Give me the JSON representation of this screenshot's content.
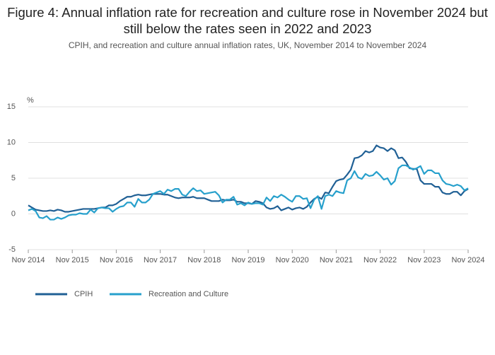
{
  "chart_data": {
    "type": "line",
    "title": "Figure 4: Annual inflation rate for recreation and culture rose in November 2024 but still below the rates seen in 2022 and 2023",
    "subtitle": "CPIH, and recreation and culture annual inflation rates, UK, November 2014 to November 2024",
    "y_label": "%",
    "categories": [
      "Nov 2014",
      null,
      null,
      null,
      null,
      null,
      null,
      null,
      null,
      null,
      null,
      null,
      "Nov 2015",
      null,
      null,
      null,
      null,
      null,
      null,
      null,
      null,
      null,
      null,
      null,
      "Nov 2016",
      null,
      null,
      null,
      null,
      null,
      null,
      null,
      null,
      null,
      null,
      null,
      "Nov 2017",
      null,
      null,
      null,
      null,
      null,
      null,
      null,
      null,
      null,
      null,
      null,
      "Nov 2018",
      null,
      null,
      null,
      null,
      null,
      null,
      null,
      null,
      null,
      null,
      null,
      "Nov 2019",
      null,
      null,
      null,
      null,
      null,
      null,
      null,
      null,
      null,
      null,
      null,
      "Nov 2020",
      null,
      null,
      null,
      null,
      null,
      null,
      null,
      null,
      null,
      null,
      null,
      "Nov 2021",
      null,
      null,
      null,
      null,
      null,
      null,
      null,
      null,
      null,
      null,
      null,
      "Nov 2022",
      null,
      null,
      null,
      null,
      null,
      null,
      null,
      null,
      null,
      null,
      null,
      "Nov 2023",
      null,
      null,
      null,
      null,
      null,
      null,
      null,
      null,
      null,
      null,
      null,
      "Nov 2024"
    ],
    "series": [
      {
        "name": "CPIH",
        "color": "#206095",
        "values": [
          1.2,
          0.9,
          0.6,
          0.5,
          0.4,
          0.4,
          0.5,
          0.4,
          0.6,
          0.5,
          0.3,
          0.3,
          0.4,
          0.5,
          0.6,
          0.7,
          0.7,
          0.7,
          0.7,
          0.8,
          0.9,
          0.9,
          1.2,
          1.2,
          1.4,
          1.8,
          2.1,
          2.4,
          2.4,
          2.6,
          2.7,
          2.6,
          2.6,
          2.7,
          2.8,
          2.8,
          2.8,
          2.7,
          2.7,
          2.5,
          2.3,
          2.2,
          2.3,
          2.3,
          2.3,
          2.4,
          2.2,
          2.2,
          2.2,
          2.0,
          1.8,
          1.8,
          1.8,
          2.0,
          1.9,
          1.9,
          2.0,
          1.7,
          1.7,
          1.5,
          1.5,
          1.4,
          1.8,
          1.7,
          1.5,
          0.9,
          0.7,
          0.8,
          1.1,
          0.5,
          0.7,
          0.9,
          0.6,
          0.8,
          0.9,
          0.7,
          1.0,
          1.6,
          2.1,
          2.4,
          2.1,
          3.0,
          2.9,
          3.8,
          4.6,
          4.8,
          4.9,
          5.5,
          6.2,
          7.8,
          7.9,
          8.2,
          8.8,
          8.6,
          8.8,
          9.6,
          9.3,
          9.2,
          8.8,
          9.2,
          8.9,
          7.8,
          7.9,
          7.3,
          6.4,
          6.3,
          6.3,
          4.7,
          4.2,
          4.2,
          4.2,
          3.8,
          3.8,
          3.0,
          2.8,
          2.8,
          3.1,
          3.1,
          2.6,
          3.2,
          3.5
        ]
      },
      {
        "name": "Recreation and Culture",
        "color": "#27a0cc",
        "values": [
          0.5,
          0.7,
          0.4,
          -0.5,
          -0.6,
          -0.3,
          -0.8,
          -0.8,
          -0.5,
          -0.7,
          -0.5,
          -0.2,
          -0.1,
          -0.1,
          0.1,
          0.0,
          0.0,
          0.6,
          0.2,
          0.8,
          0.9,
          0.8,
          0.8,
          0.3,
          0.7,
          1.0,
          1.1,
          1.6,
          1.6,
          1.0,
          2.1,
          1.6,
          1.6,
          2.0,
          2.8,
          3.0,
          3.2,
          2.8,
          3.4,
          3.2,
          3.5,
          3.5,
          2.7,
          2.5,
          3.1,
          3.6,
          3.2,
          3.3,
          2.8,
          2.9,
          3.0,
          3.1,
          2.6,
          1.6,
          2.0,
          2.0,
          2.4,
          1.3,
          1.5,
          1.2,
          1.6,
          1.4,
          1.5,
          1.5,
          1.3,
          2.3,
          1.8,
          2.5,
          2.3,
          2.7,
          2.4,
          2.0,
          1.7,
          2.5,
          2.5,
          2.1,
          2.2,
          0.8,
          2.0,
          2.5,
          0.7,
          2.5,
          2.7,
          2.5,
          3.2,
          3.0,
          2.9,
          4.7,
          5.0,
          6.0,
          5.1,
          4.9,
          5.6,
          5.3,
          5.4,
          5.9,
          5.4,
          4.8,
          5.0,
          4.1,
          4.6,
          6.4,
          6.8,
          6.8,
          6.5,
          6.2,
          6.4,
          6.7,
          5.6,
          6.1,
          6.1,
          5.7,
          5.7,
          4.7,
          4.2,
          4.1,
          3.9,
          4.1,
          3.9,
          3.3,
          3.6
        ]
      }
    ],
    "ylim": [
      -5,
      15
    ],
    "yticks": [
      -5,
      0,
      5,
      10,
      15
    ],
    "grid": true,
    "legend": "bottom-left"
  }
}
